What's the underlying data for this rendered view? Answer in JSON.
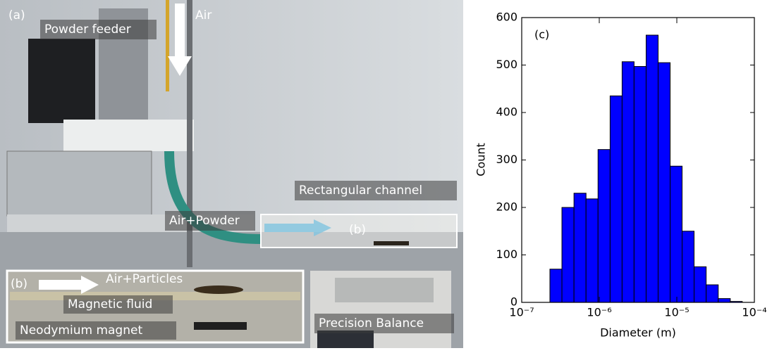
{
  "photo": {
    "panel": "(a)",
    "labels": {
      "powder_feeder": "Powder feeder",
      "air": "Air",
      "channel": "Rectangular channel",
      "air_powder": "Air+Powder",
      "region": "(b)",
      "balance": "Precision Balance"
    }
  },
  "inset": {
    "panel": "(b)",
    "labels": {
      "air_particles": "Air+Particles",
      "magnetic_fluid": "Magnetic fluid",
      "magnet": "Neodymium magnet"
    }
  },
  "chart_data": {
    "type": "histogram",
    "annotation": "(c)",
    "xlabel": "Diameter (m)",
    "ylabel": "Count",
    "xscale": "log",
    "color": "#0000ff",
    "bins": [
      2.31e-07,
      3.3e-07,
      4.72e-07,
      6.75e-07,
      9.64e-07,
      1.38e-06,
      1.97e-06,
      2.81e-06,
      4.02e-06,
      5.74e-06,
      8.2e-06,
      1.17e-05,
      1.67e-05,
      2.39e-05,
      3.42e-05,
      4.89e-05,
      6.98e-05
    ],
    "values": [
      70,
      200,
      230,
      218,
      322,
      435,
      507,
      497,
      563,
      505,
      287,
      150,
      75,
      37,
      8,
      2
    ],
    "xlim": [
      1e-07,
      0.0001
    ],
    "xticks": [
      {
        "value": 1e-07,
        "label": "10⁻⁷"
      },
      {
        "value": 1e-06,
        "label": "10⁻⁶"
      },
      {
        "value": 1e-05,
        "label": "10⁻⁵"
      },
      {
        "value": 0.0001,
        "label": "10⁻⁴"
      }
    ],
    "ylim": [
      0,
      600
    ],
    "yticks": [
      0,
      100,
      200,
      300,
      400,
      500,
      600
    ]
  }
}
